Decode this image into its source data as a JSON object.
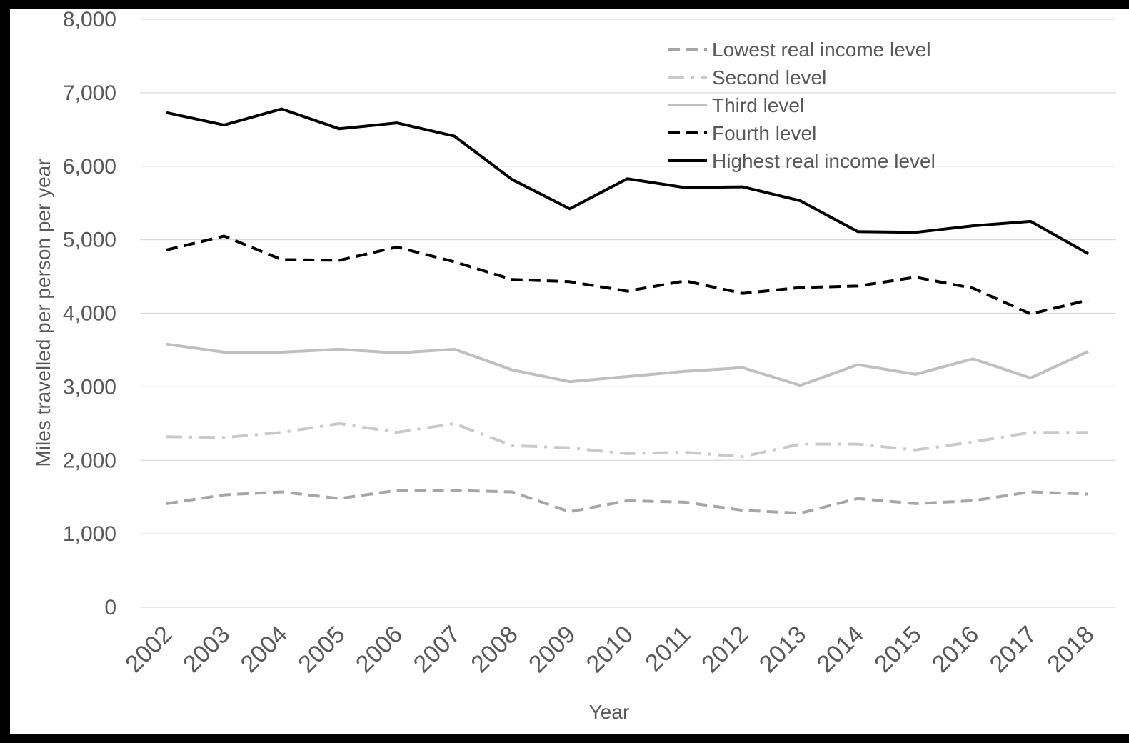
{
  "chart_data": {
    "type": "line",
    "title": "",
    "xlabel": "Year",
    "ylabel": "Miles travelled per person per year",
    "ylim": [
      0,
      8000
    ],
    "yticks": [
      0,
      1000,
      2000,
      3000,
      4000,
      5000,
      6000,
      7000,
      8000
    ],
    "ytick_labels": [
      "0",
      "1,000",
      "2,000",
      "3,000",
      "4,000",
      "5,000",
      "6,000",
      "7,000",
      "8,000"
    ],
    "grid": "horizontal",
    "legend_position": "top-right",
    "categories": [
      "2002",
      "2003",
      "2004",
      "2005",
      "2006",
      "2007",
      "2008",
      "2009",
      "2010",
      "2011",
      "2012",
      "2013",
      "2014",
      "2015",
      "2016",
      "2017",
      "2018"
    ],
    "series": [
      {
        "name": "Lowest real income level",
        "color": "#a6a6a6",
        "style": "dashed",
        "values": [
          1410,
          1530,
          1570,
          1480,
          1590,
          1590,
          1570,
          1300,
          1450,
          1430,
          1320,
          1280,
          1480,
          1410,
          1450,
          1570,
          1540
        ]
      },
      {
        "name": "Second level",
        "color": "#c9c9c9",
        "style": "dashdot",
        "values": [
          2320,
          2310,
          2380,
          2500,
          2380,
          2500,
          2200,
          2170,
          2090,
          2110,
          2050,
          2220,
          2220,
          2140,
          2250,
          2380,
          2380
        ]
      },
      {
        "name": "Third level",
        "color": "#bfbfbf",
        "style": "solid",
        "values": [
          3580,
          3470,
          3470,
          3510,
          3460,
          3510,
          3230,
          3070,
          3140,
          3210,
          3260,
          3020,
          3300,
          3170,
          3380,
          3120,
          3480
        ]
      },
      {
        "name": "Fourth level",
        "color": "#000000",
        "style": "dashed",
        "values": [
          4860,
          5050,
          4730,
          4720,
          4900,
          4700,
          4460,
          4430,
          4300,
          4440,
          4270,
          4350,
          4370,
          4490,
          4340,
          3990,
          4180
        ]
      },
      {
        "name": "Highest real income level",
        "color": "#000000",
        "style": "solid",
        "values": [
          6730,
          6560,
          6780,
          6510,
          6590,
          6410,
          5820,
          5420,
          5830,
          5710,
          5720,
          5530,
          5110,
          5100,
          5190,
          5250,
          4810
        ]
      }
    ]
  }
}
